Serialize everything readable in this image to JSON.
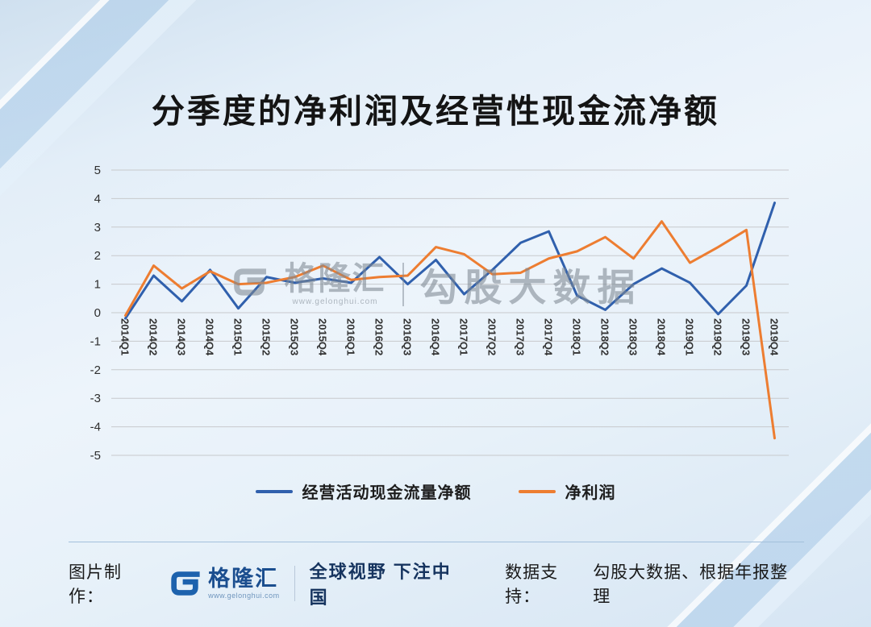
{
  "title": "分季度的净利润及经营性现金流净额",
  "watermark": {
    "brand": "格隆汇",
    "url": "www.gelonghui.com",
    "text": "勾股大数据"
  },
  "footer": {
    "made_by_label": "图片制作：",
    "brand": "格隆汇",
    "url": "www.gelonghui.com",
    "slogan": "全球视野 下注中国",
    "support_label": "数据支持：",
    "support_value": "勾股大数据、根据年报整理"
  },
  "colors": {
    "cashflow_line": "#3060ad",
    "netprofit_line": "#ed7d31",
    "gridline": "#c7c9cc",
    "logo_blue": "#1d62ad"
  },
  "chart_data": {
    "type": "line",
    "title": "分季度的净利润及经营性现金流净额",
    "xlabel": "",
    "ylabel": "",
    "ylim": [
      -5,
      5
    ],
    "ytick_step": 1,
    "yticks": [
      5,
      4,
      3,
      2,
      1,
      0,
      -1,
      -2,
      -3,
      -4,
      -5
    ],
    "grid": true,
    "legend_position": "bottom",
    "categories": [
      "2014Q1",
      "2014Q2",
      "2014Q3",
      "2014Q4",
      "2015Q1",
      "2015Q2",
      "2015Q3",
      "2015Q4",
      "2016Q1",
      "2016Q2",
      "2016Q3",
      "2016Q4",
      "2017Q1",
      "2017Q2",
      "2017Q3",
      "2017Q4",
      "2018Q1",
      "2018Q2",
      "2018Q3",
      "2018Q4",
      "2019Q1",
      "2019Q2",
      "2019Q3",
      "2019Q4"
    ],
    "series": [
      {
        "name": "经营活动现金流量净额",
        "color": "#3060ad",
        "values": [
          -0.2,
          1.3,
          0.4,
          1.5,
          0.15,
          1.25,
          1.05,
          1.2,
          1.05,
          1.95,
          1.0,
          1.85,
          0.65,
          1.5,
          2.45,
          2.85,
          0.6,
          0.1,
          1.0,
          1.55,
          1.05,
          -0.05,
          0.95,
          3.85
        ]
      },
      {
        "name": "净利润",
        "color": "#ed7d31",
        "values": [
          -0.1,
          1.65,
          0.85,
          1.45,
          1.0,
          1.05,
          1.25,
          1.65,
          1.15,
          1.25,
          1.3,
          2.3,
          2.05,
          1.35,
          1.4,
          1.9,
          2.15,
          2.65,
          1.9,
          3.2,
          1.75,
          2.3,
          2.9,
          -4.4
        ]
      }
    ]
  }
}
